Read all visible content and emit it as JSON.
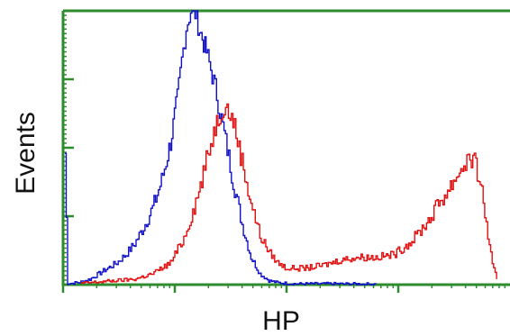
{
  "chart_data": {
    "type": "line",
    "title": "",
    "xlabel": "HP",
    "ylabel": "Events",
    "x_scale": "log",
    "xlim": [
      0,
      100
    ],
    "ylim": [
      0,
      100
    ],
    "grid": false,
    "legend": "none",
    "colors": {
      "axis": "#2e8b2e",
      "blue": "#1010c8",
      "red": "#e01010"
    },
    "series": [
      {
        "color": "#1010c8",
        "x": [
          0.4,
          1,
          2,
          4,
          6,
          8,
          10,
          12,
          14,
          16,
          18,
          20,
          22,
          24,
          25.5,
          26.5,
          27.5,
          28.5,
          29.5,
          30.5,
          32,
          34,
          36,
          38,
          40,
          42,
          44,
          46,
          48,
          50,
          52,
          60,
          70
        ],
        "y": [
          48,
          0.5,
          0.5,
          1,
          2,
          4,
          6,
          8,
          11,
          15,
          21,
          28,
          38,
          52,
          68,
          82,
          94,
          100,
          99,
          93,
          85,
          72,
          55,
          38,
          22,
          10,
          4,
          1.5,
          0.7,
          0.5,
          0.3,
          0.3,
          0.2
        ]
      },
      {
        "color": "#e01010",
        "x": [
          4,
          8,
          12,
          16,
          20,
          24,
          27,
          30,
          32,
          34,
          36,
          38,
          40,
          42,
          44,
          46,
          48,
          50,
          54,
          58,
          62,
          66,
          70,
          74,
          78,
          82,
          84,
          86,
          88,
          89,
          90,
          91,
          92,
          93,
          94,
          95,
          96,
          97
        ],
        "y": [
          0.5,
          1,
          1.5,
          2,
          4,
          8,
          17,
          32,
          45,
          58,
          66,
          60,
          45,
          30,
          18,
          12,
          8,
          6,
          6,
          7,
          9,
          10,
          10,
          11,
          16,
          24,
          30,
          34,
          40,
          42,
          45,
          46,
          44,
          40,
          30,
          18,
          7,
          2
        ]
      }
    ]
  }
}
